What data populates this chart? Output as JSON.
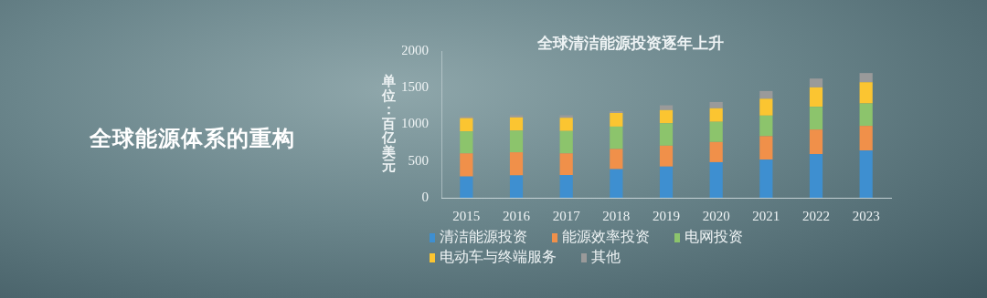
{
  "chart_data": {
    "type": "bar",
    "title": "全球清洁能源投资逐年上升",
    "ylabel": "单位：百亿美元",
    "annotations": [
      "全球能源体系的重构"
    ],
    "categories": [
      "2015",
      "2016",
      "2017",
      "2018",
      "2019",
      "2020",
      "2021",
      "2022",
      "2023"
    ],
    "stacked": true,
    "ylim": [
      0,
      2000
    ],
    "yticks": [
      0,
      500,
      1000,
      1500,
      2000
    ],
    "grid": false,
    "legend": "bottom",
    "series": [
      {
        "name": "清洁能源投资",
        "color": "#3e8fd0",
        "values": [
          290,
          305,
          310,
          390,
          425,
          485,
          520,
          595,
          645
        ]
      },
      {
        "name": "能源效率投资",
        "color": "#f0904a",
        "values": [
          315,
          315,
          295,
          275,
          285,
          275,
          320,
          335,
          335
        ]
      },
      {
        "name": "电网投资",
        "color": "#8cc46c",
        "values": [
          300,
          295,
          305,
          305,
          305,
          275,
          280,
          310,
          305
        ]
      },
      {
        "name": "电动车与终端服务",
        "color": "#fbc531",
        "values": [
          180,
          180,
          180,
          185,
          180,
          185,
          230,
          265,
          290
        ]
      },
      {
        "name": "其他",
        "color": "#9a9a9a",
        "values": [
          25,
          30,
          35,
          25,
          65,
          85,
          105,
          120,
          125
        ]
      }
    ]
  }
}
